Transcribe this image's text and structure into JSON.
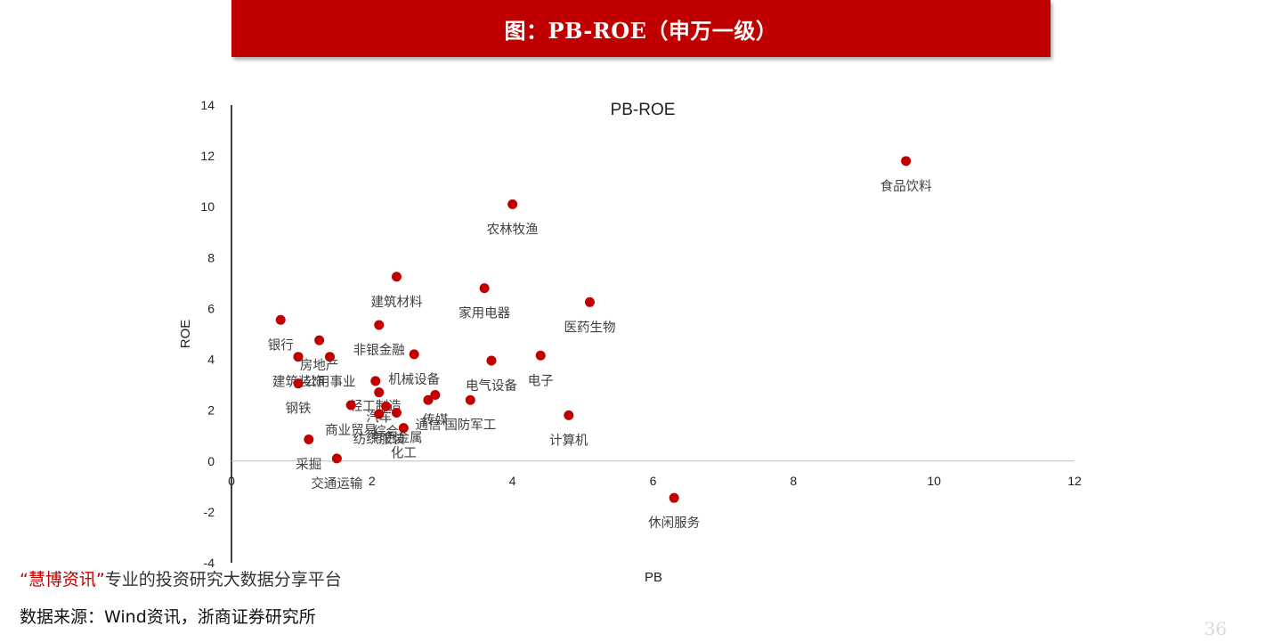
{
  "header": {
    "title": "图：PB-ROE（申万一级）"
  },
  "chart_data": {
    "type": "scatter",
    "title": "PB-ROE",
    "xlabel": "PB",
    "ylabel": "ROE",
    "xlim": [
      0,
      12
    ],
    "ylim": [
      -4,
      14
    ],
    "xticks": [
      0,
      2,
      4,
      6,
      8,
      10,
      12
    ],
    "yticks": [
      -4,
      -2,
      0,
      2,
      4,
      6,
      8,
      10,
      12,
      14
    ],
    "grid": false,
    "point_color": "#c00000",
    "points": [
      {
        "label": "食品饮料",
        "x": 9.6,
        "y": 11.8
      },
      {
        "label": "农林牧渔",
        "x": 4.0,
        "y": 10.1
      },
      {
        "label": "建筑材料",
        "x": 2.35,
        "y": 7.25
      },
      {
        "label": "家用电器",
        "x": 3.6,
        "y": 6.8
      },
      {
        "label": "医药生物",
        "x": 5.1,
        "y": 6.25
      },
      {
        "label": "银行",
        "x": 0.7,
        "y": 5.55
      },
      {
        "label": "非银金融",
        "x": 2.1,
        "y": 5.35
      },
      {
        "label": "房地产",
        "x": 1.25,
        "y": 4.75
      },
      {
        "label": "公用事业",
        "x": 1.4,
        "y": 4.1
      },
      {
        "label": "建筑装饰",
        "x": 0.95,
        "y": 4.1
      },
      {
        "label": "机械设备",
        "x": 2.6,
        "y": 4.2
      },
      {
        "label": "电气设备",
        "x": 3.7,
        "y": 3.95
      },
      {
        "label": "电子",
        "x": 4.4,
        "y": 4.15
      },
      {
        "label": "钢铁",
        "x": 0.95,
        "y": 3.05
      },
      {
        "label": "轻工制造",
        "x": 2.05,
        "y": 3.15
      },
      {
        "label": "汽车",
        "x": 2.1,
        "y": 2.7
      },
      {
        "label": "传媒",
        "x": 2.9,
        "y": 2.6
      },
      {
        "label": "通信",
        "x": 2.8,
        "y": 2.4
      },
      {
        "label": "国防军工",
        "x": 3.4,
        "y": 2.4
      },
      {
        "label": "商业贸易",
        "x": 1.7,
        "y": 2.2
      },
      {
        "label": "纺织服装",
        "x": 2.1,
        "y": 1.85
      },
      {
        "label": "综合",
        "x": 2.2,
        "y": 2.15
      },
      {
        "label": "有色金属",
        "x": 2.35,
        "y": 1.9
      },
      {
        "label": "化工",
        "x": 2.45,
        "y": 1.3
      },
      {
        "label": "计算机",
        "x": 4.8,
        "y": 1.8
      },
      {
        "label": "采掘",
        "x": 1.1,
        "y": 0.85
      },
      {
        "label": "交通运输",
        "x": 1.5,
        "y": 0.1
      },
      {
        "label": "休闲服务",
        "x": 6.3,
        "y": -1.45
      }
    ]
  },
  "watermark": {
    "quote_open": "“",
    "brand": "慧博资讯",
    "quote_close": "”",
    "tagline": "专业的投资研究大数据分享平台"
  },
  "source": "数据来源：Wind资讯，浙商证券研究所",
  "page_number": "36"
}
